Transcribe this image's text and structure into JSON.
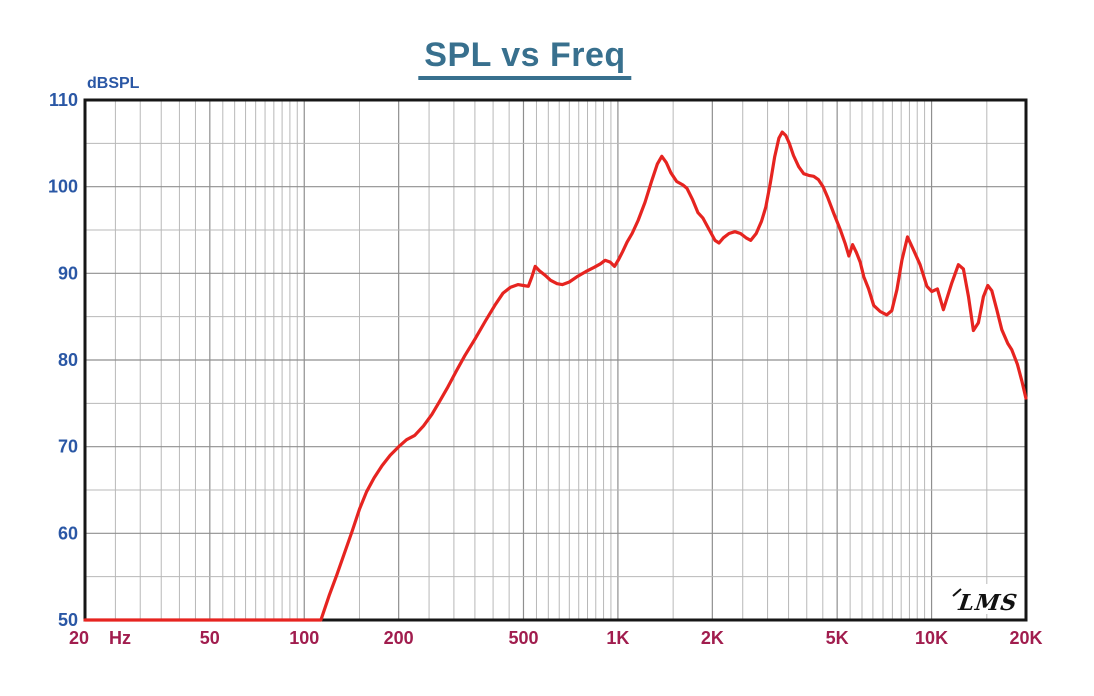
{
  "chart_data": {
    "type": "line",
    "title": "SPL vs Freq",
    "y_axis_label": "dBSPL",
    "x_unit_label": "Hz",
    "x_scale": "log",
    "x_range": [
      20,
      20000
    ],
    "y_range": [
      50,
      110
    ],
    "y_major_ticks": [
      110,
      100,
      90,
      80,
      70,
      60,
      50
    ],
    "y_minor_ticks": [
      105,
      95,
      85,
      75,
      65,
      55
    ],
    "x_major_ticks": [
      {
        "value": 20,
        "label": "20"
      },
      {
        "value": 50,
        "label": "50"
      },
      {
        "value": 100,
        "label": "100"
      },
      {
        "value": 200,
        "label": "200"
      },
      {
        "value": 500,
        "label": "500"
      },
      {
        "value": 1000,
        "label": "1K"
      },
      {
        "value": 2000,
        "label": "2K"
      },
      {
        "value": 5000,
        "label": "5K"
      },
      {
        "value": 10000,
        "label": "10K"
      },
      {
        "value": 20000,
        "label": "20K"
      }
    ],
    "grid": "on, log minor divisions at half steps, 5 dB horizontal minors",
    "legend": "none",
    "watermark": "LMS",
    "colors": {
      "title": "#38708e",
      "y_label": "#2a57a5",
      "x_label": "#a11d4e",
      "curve": "#e62420",
      "grid_minor": "#b8b8b8",
      "grid_major": "#8f8f8f",
      "border": "#161616",
      "watermark": "#111111"
    },
    "series": [
      {
        "name": "SPL",
        "points": [
          [
            20,
            50
          ],
          [
            40,
            50
          ],
          [
            70,
            50
          ],
          [
            100,
            50
          ],
          [
            113,
            50
          ],
          [
            120,
            52.8
          ],
          [
            127,
            55.2
          ],
          [
            134,
            57.6
          ],
          [
            142,
            60.2
          ],
          [
            150,
            62.8
          ],
          [
            158,
            64.8
          ],
          [
            167,
            66.4
          ],
          [
            177,
            67.8
          ],
          [
            188,
            69.0
          ],
          [
            200,
            70.0
          ],
          [
            212,
            70.8
          ],
          [
            225,
            71.3
          ],
          [
            240,
            72.4
          ],
          [
            255,
            73.7
          ],
          [
            270,
            75.2
          ],
          [
            287,
            76.9
          ],
          [
            305,
            78.7
          ],
          [
            325,
            80.5
          ],
          [
            350,
            82.4
          ],
          [
            378,
            84.5
          ],
          [
            405,
            86.3
          ],
          [
            430,
            87.7
          ],
          [
            455,
            88.4
          ],
          [
            480,
            88.7
          ],
          [
            500,
            88.6
          ],
          [
            518,
            88.5
          ],
          [
            532,
            89.6
          ],
          [
            545,
            90.8
          ],
          [
            562,
            90.3
          ],
          [
            585,
            89.8
          ],
          [
            610,
            89.2
          ],
          [
            640,
            88.8
          ],
          [
            665,
            88.7
          ],
          [
            700,
            89.0
          ],
          [
            740,
            89.6
          ],
          [
            790,
            90.2
          ],
          [
            840,
            90.7
          ],
          [
            880,
            91.1
          ],
          [
            910,
            91.5
          ],
          [
            945,
            91.3
          ],
          [
            975,
            90.8
          ],
          [
            1005,
            91.6
          ],
          [
            1035,
            92.5
          ],
          [
            1070,
            93.6
          ],
          [
            1110,
            94.6
          ],
          [
            1160,
            96.1
          ],
          [
            1220,
            98.2
          ],
          [
            1280,
            100.6
          ],
          [
            1335,
            102.6
          ],
          [
            1380,
            103.5
          ],
          [
            1425,
            102.8
          ],
          [
            1475,
            101.6
          ],
          [
            1540,
            100.6
          ],
          [
            1610,
            100.2
          ],
          [
            1660,
            99.8
          ],
          [
            1730,
            98.5
          ],
          [
            1800,
            97.0
          ],
          [
            1865,
            96.4
          ],
          [
            1950,
            95.1
          ],
          [
            2040,
            93.8
          ],
          [
            2100,
            93.5
          ],
          [
            2170,
            94.1
          ],
          [
            2260,
            94.6
          ],
          [
            2360,
            94.8
          ],
          [
            2460,
            94.6
          ],
          [
            2560,
            94.1
          ],
          [
            2650,
            93.8
          ],
          [
            2760,
            94.6
          ],
          [
            2870,
            96.0
          ],
          [
            2960,
            97.6
          ],
          [
            3060,
            100.4
          ],
          [
            3160,
            103.4
          ],
          [
            3260,
            105.6
          ],
          [
            3340,
            106.3
          ],
          [
            3430,
            105.9
          ],
          [
            3520,
            105.0
          ],
          [
            3630,
            103.6
          ],
          [
            3770,
            102.3
          ],
          [
            3910,
            101.5
          ],
          [
            4060,
            101.3
          ],
          [
            4210,
            101.2
          ],
          [
            4360,
            100.8
          ],
          [
            4510,
            100.0
          ],
          [
            4670,
            98.7
          ],
          [
            4880,
            96.9
          ],
          [
            5120,
            95.0
          ],
          [
            5310,
            93.4
          ],
          [
            5450,
            92.0
          ],
          [
            5600,
            93.3
          ],
          [
            5760,
            92.4
          ],
          [
            5920,
            91.3
          ],
          [
            6080,
            89.6
          ],
          [
            6300,
            88.2
          ],
          [
            6540,
            86.3
          ],
          [
            6860,
            85.6
          ],
          [
            7200,
            85.2
          ],
          [
            7470,
            85.7
          ],
          [
            7750,
            88.1
          ],
          [
            8040,
            91.5
          ],
          [
            8380,
            94.2
          ],
          [
            8760,
            92.7
          ],
          [
            9190,
            91.0
          ],
          [
            9660,
            88.5
          ],
          [
            10020,
            87.9
          ],
          [
            10440,
            88.2
          ],
          [
            10910,
            85.8
          ],
          [
            11600,
            88.9
          ],
          [
            12180,
            91.0
          ],
          [
            12630,
            90.5
          ],
          [
            13110,
            87.3
          ],
          [
            13590,
            83.4
          ],
          [
            14100,
            84.3
          ],
          [
            14630,
            87.3
          ],
          [
            15110,
            88.6
          ],
          [
            15560,
            88.0
          ],
          [
            16140,
            85.8
          ],
          [
            16740,
            83.5
          ],
          [
            17500,
            81.9
          ],
          [
            18010,
            81.2
          ],
          [
            18770,
            79.5
          ],
          [
            19390,
            77.6
          ],
          [
            19980,
            75.6
          ]
        ]
      }
    ]
  }
}
